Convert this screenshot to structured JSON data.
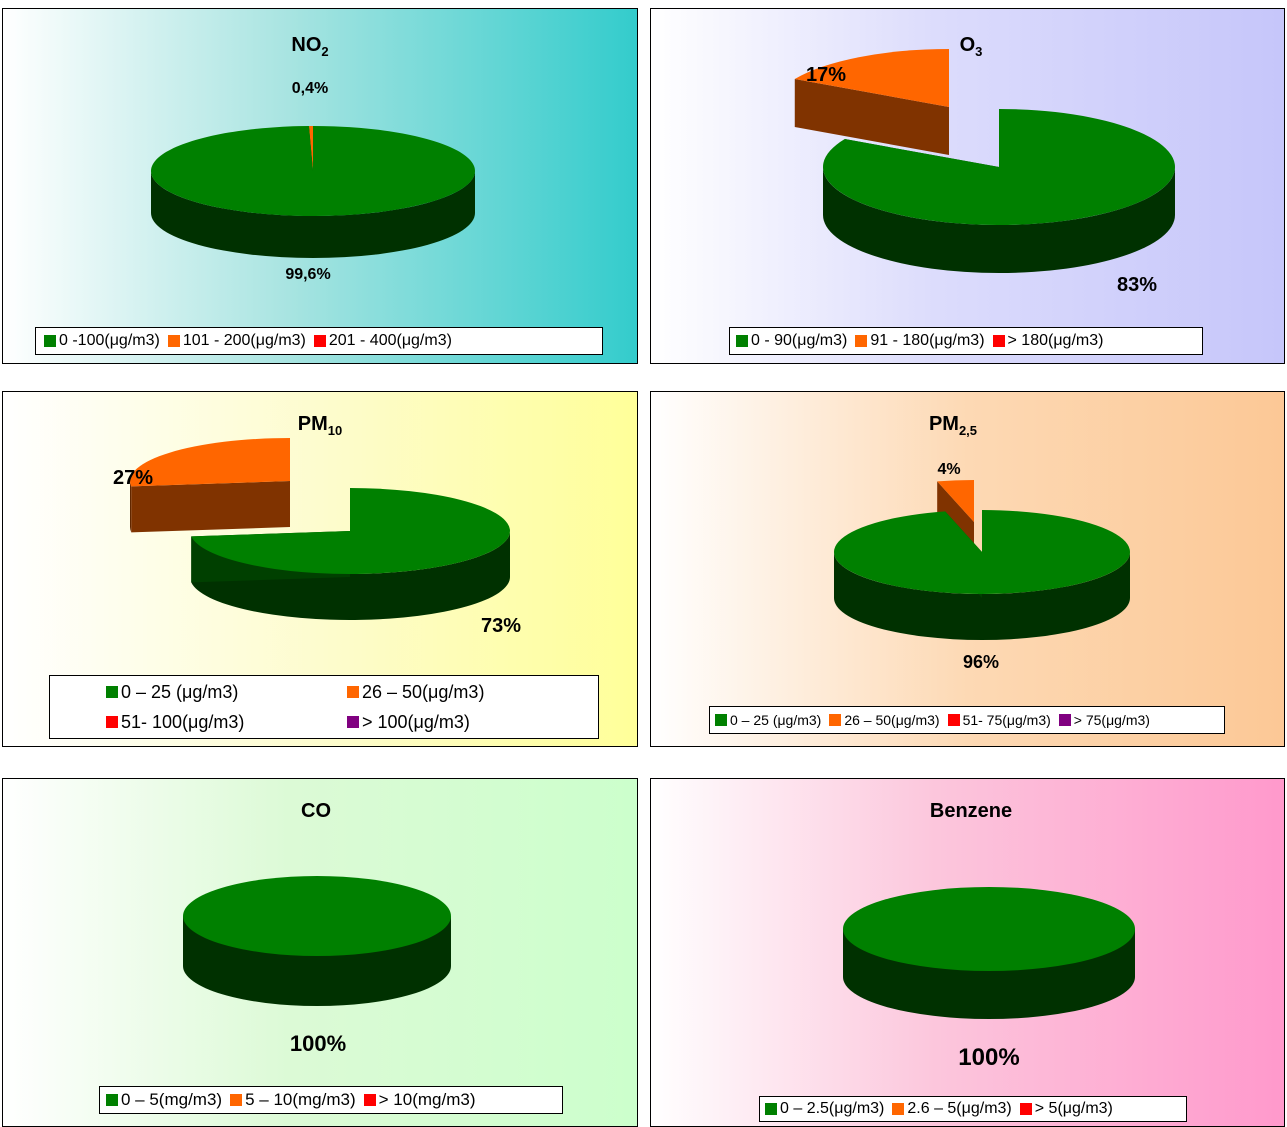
{
  "chart_data": [
    {
      "type": "pie",
      "title": "NO",
      "title_sub": "2",
      "categories": [
        "0 -100(μg/m3)",
        "101  -  200(μg/m3)",
        "201  -  400(μg/m3)"
      ],
      "values": [
        99.6,
        0.4,
        0
      ],
      "data_labels": [
        "99,6%",
        "0,4%",
        ""
      ],
      "colors": [
        "#008000",
        "#ff6600",
        "#ff0000"
      ],
      "legend_position": "bottom"
    },
    {
      "type": "pie",
      "title": "O",
      "title_sub": "3",
      "categories": [
        "0  -  90(μg/m3)",
        "91  -  180(μg/m3)",
        "> 180(μg/m3)"
      ],
      "values": [
        83,
        17,
        0
      ],
      "data_labels": [
        "83%",
        "17%",
        ""
      ],
      "colors": [
        "#008000",
        "#ff6600",
        "#ff0000"
      ],
      "legend_position": "bottom"
    },
    {
      "type": "pie",
      "title": "PM",
      "title_sub": "10",
      "categories": [
        "0 – 25 (μg/m3)",
        "26 – 50(μg/m3)",
        "51- 100(μg/m3)",
        "> 100(μg/m3)"
      ],
      "values": [
        73,
        27,
        0,
        0
      ],
      "data_labels": [
        "73%",
        "27%",
        "",
        ""
      ],
      "colors": [
        "#008000",
        "#ff6600",
        "#ff0000",
        "#800080"
      ],
      "legend_position": "bottom"
    },
    {
      "type": "pie",
      "title": "PM",
      "title_sub": "2,5",
      "categories": [
        "0 – 25 (μg/m3)",
        "26 – 50(μg/m3)",
        "51- 75(μg/m3)",
        "> 75(μg/m3)"
      ],
      "values": [
        96,
        4,
        0,
        0
      ],
      "data_labels": [
        "96%",
        "4%",
        "",
        ""
      ],
      "colors": [
        "#008000",
        "#ff6600",
        "#ff0000",
        "#800080"
      ],
      "legend_position": "bottom"
    },
    {
      "type": "pie",
      "title": "CO",
      "title_sub": "",
      "categories": [
        "0 – 5(mg/m3)",
        "5 – 10(mg/m3)",
        "> 10(mg/m3)"
      ],
      "values": [
        100,
        0,
        0
      ],
      "data_labels": [
        "100%",
        "",
        ""
      ],
      "colors": [
        "#008000",
        "#ff6600",
        "#ff0000"
      ],
      "legend_position": "bottom"
    },
    {
      "type": "pie",
      "title": "Benzene",
      "title_sub": "",
      "categories": [
        "0 – 2.5(μg/m3)",
        "2.6 – 5(μg/m3)",
        "> 5(μg/m3)"
      ],
      "values": [
        100,
        0,
        0
      ],
      "data_labels": [
        "100%",
        "",
        ""
      ],
      "colors": [
        "#008000",
        "#ff6600",
        "#ff0000"
      ],
      "legend_position": "bottom"
    }
  ]
}
